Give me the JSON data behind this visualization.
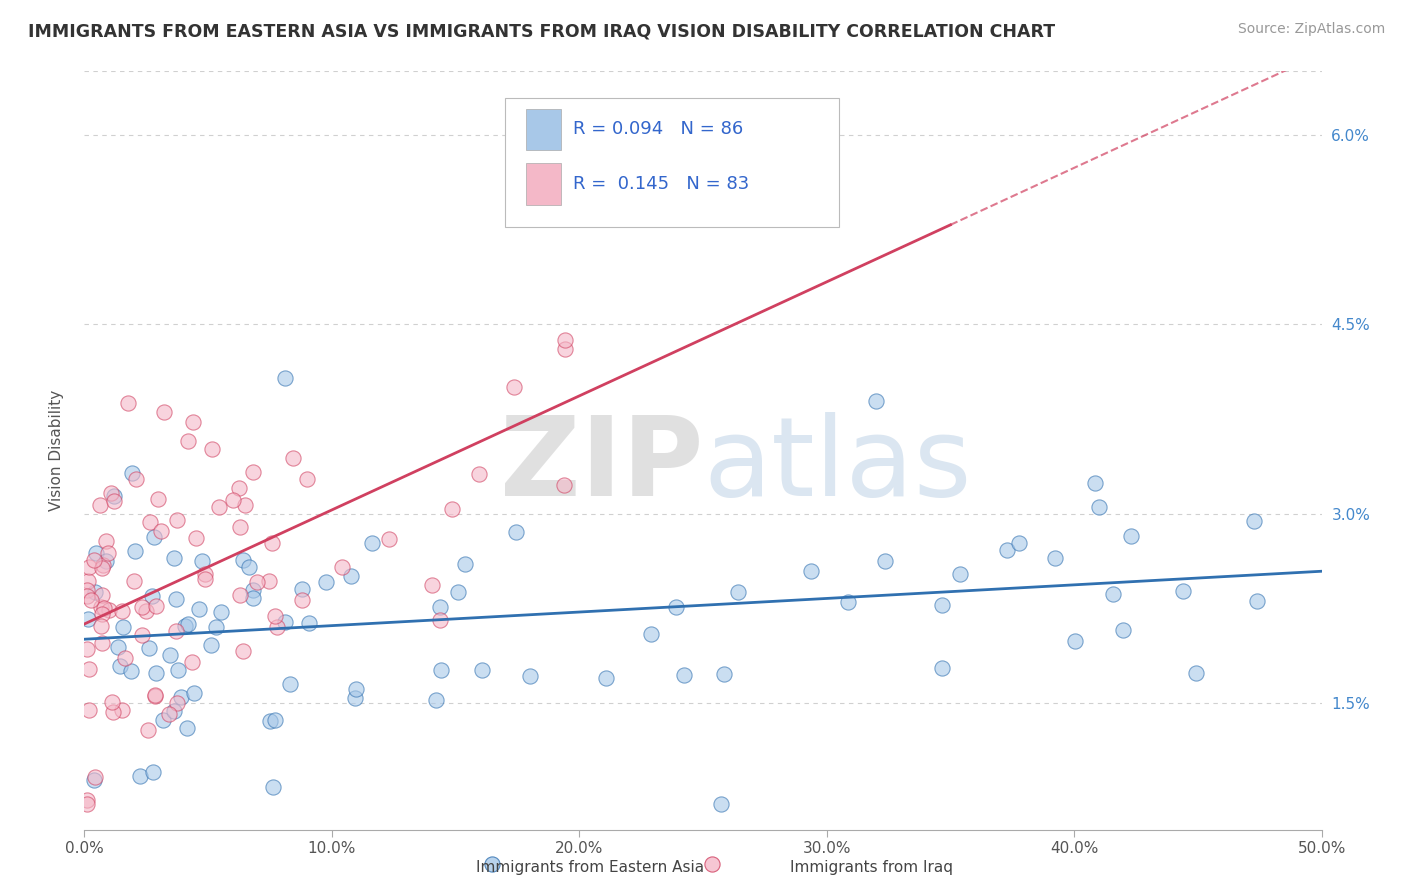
{
  "title": "IMMIGRANTS FROM EASTERN ASIA VS IMMIGRANTS FROM IRAQ VISION DISABILITY CORRELATION CHART",
  "source_text": "Source: ZipAtlas.com",
  "ylabel": "Vision Disability",
  "watermark": "ZIPatlas",
  "legend_label1": "Immigrants from Eastern Asia",
  "legend_label2": "Immigrants from Iraq",
  "R1": 0.094,
  "N1": 86,
  "R2": 0.145,
  "N2": 83,
  "color1": "#a8c8e8",
  "color2": "#f4b8c8",
  "line_color1": "#3070b0",
  "line_color2": "#d04060",
  "xmin": 0.0,
  "xmax": 0.5,
  "ymin": 0.005,
  "ymax": 0.065,
  "background_color": "#ffffff",
  "grid_color": "#d0d0d0",
  "yticks": [
    0.015,
    0.03,
    0.045,
    0.06
  ],
  "ytick_labels": [
    "1.5%",
    "3.0%",
    "4.5%",
    "6.0%"
  ],
  "xticks": [
    0.0,
    0.1,
    0.2,
    0.3,
    0.4,
    0.5
  ],
  "xtick_labels": [
    "0.0%",
    "10.0%",
    "20.0%",
    "30.0%",
    "40.0%",
    "50.0%"
  ]
}
